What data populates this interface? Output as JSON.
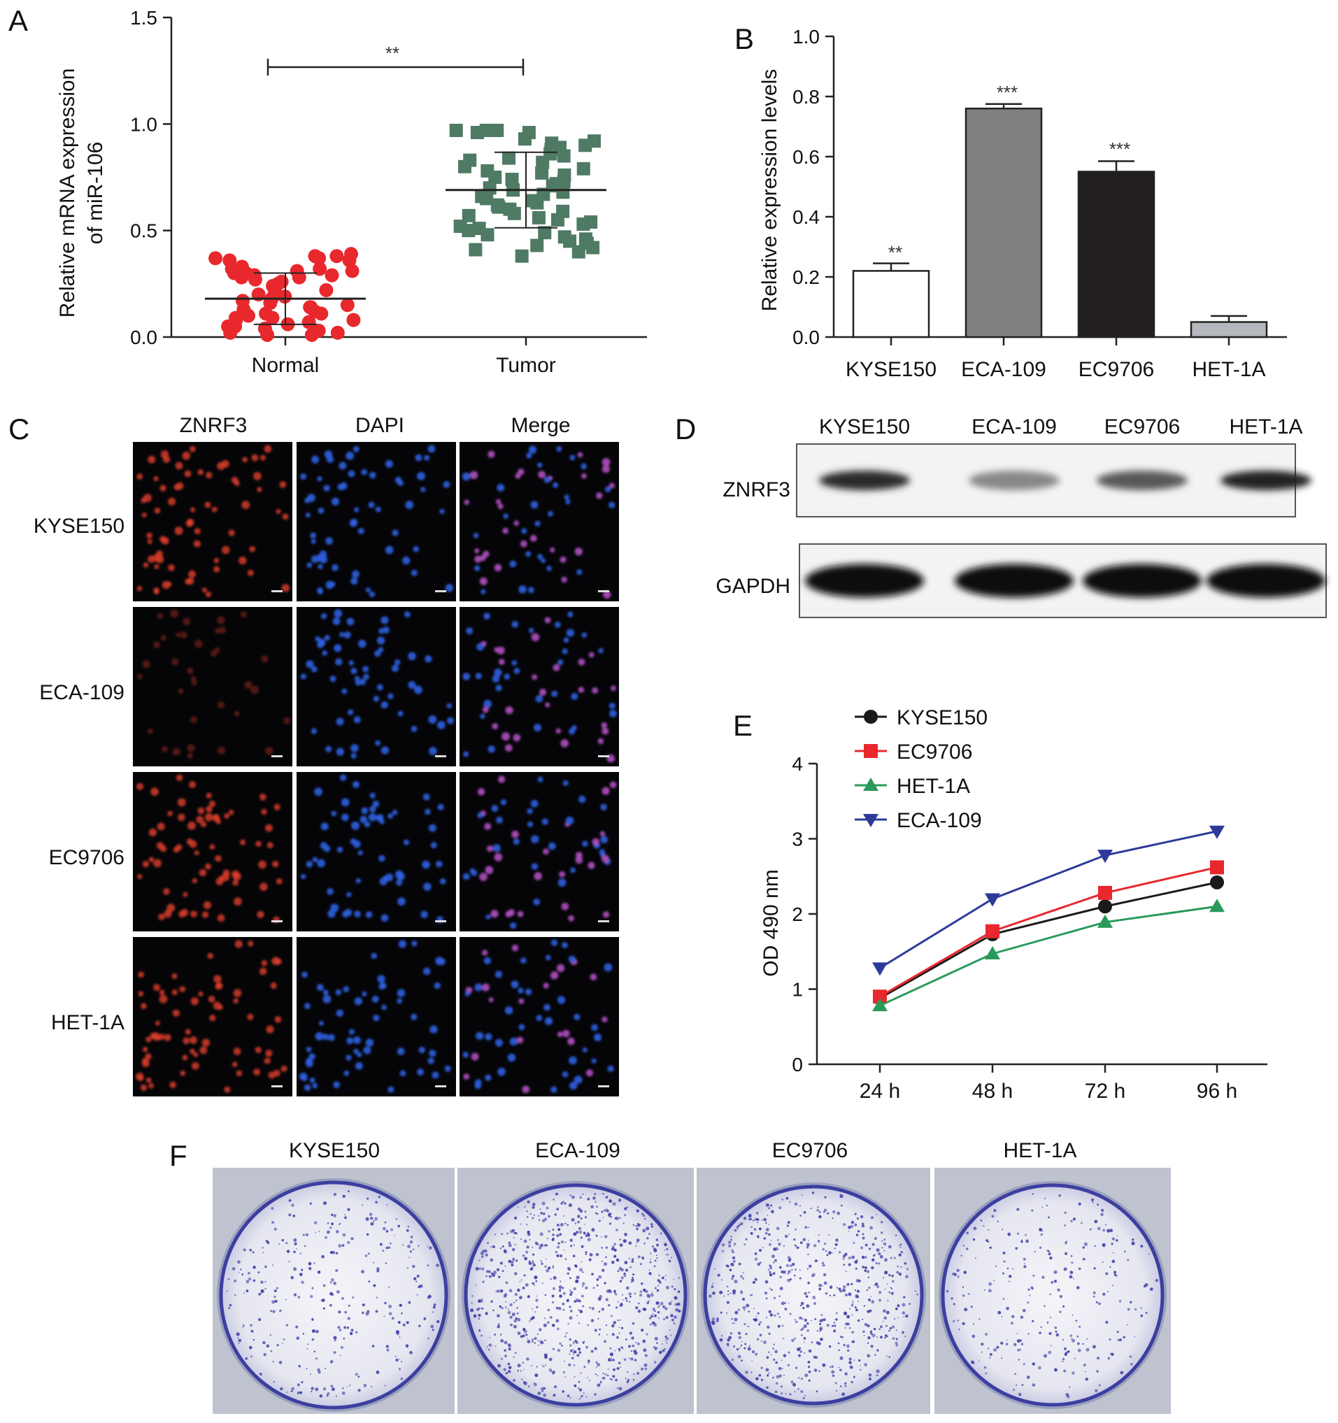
{
  "panels": {
    "A": {
      "letter": "A",
      "chart_data": {
        "type": "scatter",
        "ylabel_lines": [
          "Relative mRNA expression",
          "of miR-106"
        ],
        "categories": [
          "Normal",
          "Tumor"
        ],
        "yticks": [
          "0.0",
          "0.5",
          "1.0",
          "1.5"
        ],
        "ylim": [
          0,
          1.5
        ],
        "significance": "**",
        "colors": {
          "Normal": "#e8282d",
          "Tumor": "#4f7a63"
        },
        "markers": {
          "Normal": "circle",
          "Tumor": "square"
        },
        "means": [
          0.18,
          0.69
        ],
        "series": [
          {
            "name": "Normal",
            "values": [
              0.37,
              0.38,
              0.36,
              0.39,
              0.38,
              0.36,
              0.37,
              0.32,
              0.3,
              0.31,
              0.33,
              0.3,
              0.32,
              0.29,
              0.31,
              0.28,
              0.29,
              0.27,
              0.28,
              0.26,
              0.25,
              0.24,
              0.22,
              0.21,
              0.2,
              0.19,
              0.18,
              0.17,
              0.16,
              0.15,
              0.14,
              0.13,
              0.12,
              0.11,
              0.1,
              0.09,
              0.09,
              0.08,
              0.07,
              0.06,
              0.05,
              0.04,
              0.03,
              0.02,
              0.02,
              0.01,
              0.01,
              0.03,
              0.05,
              0.08,
              0.11,
              0.14
            ]
          },
          {
            "name": "Tumor",
            "values": [
              0.97,
              0.96,
              0.97,
              0.97,
              0.96,
              0.97,
              0.93,
              0.91,
              0.89,
              0.92,
              0.9,
              0.88,
              0.86,
              0.85,
              0.84,
              0.83,
              0.82,
              0.8,
              0.79,
              0.78,
              0.77,
              0.76,
              0.75,
              0.74,
              0.73,
              0.72,
              0.71,
              0.7,
              0.69,
              0.68,
              0.67,
              0.66,
              0.65,
              0.64,
              0.63,
              0.62,
              0.61,
              0.6,
              0.59,
              0.58,
              0.57,
              0.56,
              0.55,
              0.54,
              0.53,
              0.52,
              0.51,
              0.5,
              0.49,
              0.48,
              0.47,
              0.46,
              0.45,
              0.44,
              0.43,
              0.42,
              0.41,
              0.4,
              0.38
            ]
          }
        ]
      }
    },
    "B": {
      "letter": "B",
      "chart_data": {
        "type": "bar",
        "ylabel": "Relative expression levels",
        "categories": [
          "KYSE150",
          "ECA-109",
          "EC9706",
          "HET-1A"
        ],
        "values": [
          0.22,
          0.76,
          0.55,
          0.05
        ],
        "errors": [
          0.025,
          0.015,
          0.035,
          0.02
        ],
        "significance": [
          "**",
          "***",
          "***",
          ""
        ],
        "yticks": [
          "0.0",
          "0.2",
          "0.4",
          "0.6",
          "0.8",
          "1.0"
        ],
        "ylim": [
          0,
          1.0
        ],
        "colors": [
          "#ffffff",
          "#808080",
          "#231f20",
          "#b4b8bd"
        ]
      }
    },
    "C": {
      "letter": "C",
      "columns": [
        "ZNRF3",
        "DAPI",
        "Merge"
      ],
      "rows": [
        "KYSE150",
        "ECA-109",
        "EC9706",
        "HET-1A"
      ],
      "channel_colors": {
        "ZNRF3": "#e0402a",
        "DAPI": "#2f5fe0",
        "Merge": "#b050c0"
      }
    },
    "D": {
      "letter": "D",
      "lanes": [
        "KYSE150",
        "ECA-109",
        "EC9706",
        "HET-1A"
      ],
      "blots": [
        {
          "label": "ZNRF3",
          "intensity": [
            0.85,
            0.35,
            0.6,
            0.9
          ]
        },
        {
          "label": "GAPDH",
          "intensity": [
            1.0,
            1.0,
            1.0,
            1.0
          ]
        }
      ]
    },
    "E": {
      "letter": "E",
      "chart_data": {
        "type": "line",
        "ylabel": "OD 490 nm",
        "x": [
          "24 h",
          "48 h",
          "72 h",
          "96 h"
        ],
        "yticks": [
          "0",
          "1",
          "2",
          "3",
          "4"
        ],
        "ylim": [
          0,
          4
        ],
        "legend_position": "top-left",
        "series": [
          {
            "name": "KYSE150",
            "values": [
              0.88,
              1.73,
              2.1,
              2.42
            ],
            "color": "#1a1a1a",
            "marker": "circle"
          },
          {
            "name": "EC9706",
            "values": [
              0.9,
              1.77,
              2.28,
              2.62
            ],
            "color": "#e8282d",
            "marker": "square"
          },
          {
            "name": "HET-1A",
            "values": [
              0.78,
              1.47,
              1.89,
              2.1
            ],
            "color": "#2a9a5a",
            "marker": "triangle-up"
          },
          {
            "name": "ECA-109",
            "values": [
              1.28,
              2.2,
              2.78,
              3.1
            ],
            "color": "#2e3a9a",
            "marker": "triangle-down"
          }
        ]
      }
    },
    "F": {
      "letter": "F",
      "wells": [
        "KYSE150",
        "ECA-109",
        "EC9706",
        "HET-1A"
      ],
      "colony_density": [
        0.35,
        0.85,
        0.7,
        0.3
      ]
    }
  }
}
